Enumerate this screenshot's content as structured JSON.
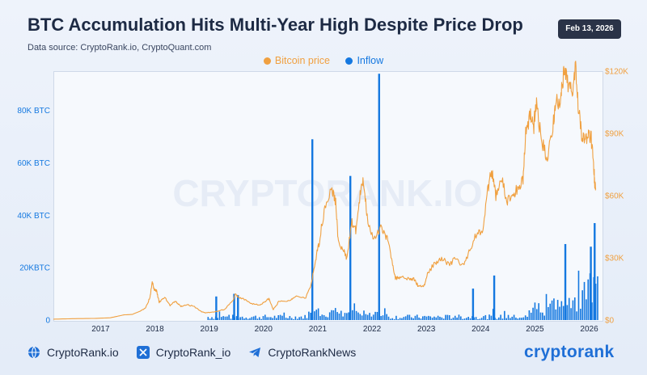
{
  "header": {
    "title": "BTC Accumulation Hits Multi-Year High Despite Price Drop",
    "subtitle": "Data source: CryptoRank.io, CryptoQuant.com",
    "date": "Feb 13, 2026"
  },
  "watermark": "CRYPTORANK.IO",
  "colors": {
    "price": "#f0a040",
    "inflow": "#1478e0",
    "left_axis_text": "#1478e0",
    "right_axis_text": "#f0a040"
  },
  "chart_data": {
    "type": "bar+line",
    "title": "BTC Accumulation Hits Multi-Year High Despite Price Drop",
    "legend": [
      "Bitcoin price",
      "Inflow"
    ],
    "legend_position": "top-center",
    "x_range": [
      2016.15,
      2026.25
    ],
    "x_ticks": [
      "2017",
      "2018",
      "2019",
      "2020",
      "2021",
      "2022",
      "2023",
      "2024",
      "2025",
      "2026"
    ],
    "left_axis": {
      "series": "Inflow",
      "unit": "BTC",
      "range": [
        0,
        95000
      ],
      "ticks": [
        {
          "value": 0,
          "label": "0"
        },
        {
          "value": 20000,
          "label": "20KBTC"
        },
        {
          "value": 40000,
          "label": "40K BTC"
        },
        {
          "value": 60000,
          "label": "60K BTC"
        },
        {
          "value": 80000,
          "label": "80K BTC"
        }
      ]
    },
    "right_axis": {
      "series": "Bitcoin price",
      "unit": "USD",
      "range": [
        0,
        120000
      ],
      "ticks": [
        {
          "value": 0,
          "label": "$0"
        },
        {
          "value": 30000,
          "label": "$30K"
        },
        {
          "value": 60000,
          "label": "$60K"
        },
        {
          "value": 90000,
          "label": "$90K"
        },
        {
          "value": 120000,
          "label": "$120K"
        }
      ]
    },
    "series": [
      {
        "name": "Bitcoin price",
        "axis": "right",
        "type": "line",
        "points": [
          [
            2016.15,
            420
          ],
          [
            2016.5,
            650
          ],
          [
            2016.9,
            780
          ],
          [
            2017.2,
            1100
          ],
          [
            2017.45,
            2500
          ],
          [
            2017.6,
            2700
          ],
          [
            2017.75,
            4300
          ],
          [
            2017.85,
            6000
          ],
          [
            2017.93,
            11000
          ],
          [
            2017.97,
            19000
          ],
          [
            2018.0,
            15000
          ],
          [
            2018.05,
            14000
          ],
          [
            2018.1,
            8500
          ],
          [
            2018.2,
            11000
          ],
          [
            2018.3,
            7000
          ],
          [
            2018.4,
            9000
          ],
          [
            2018.5,
            6500
          ],
          [
            2018.6,
            7500
          ],
          [
            2018.75,
            6400
          ],
          [
            2018.88,
            4000
          ],
          [
            2018.95,
            3500
          ],
          [
            2019.1,
            3800
          ],
          [
            2019.3,
            5200
          ],
          [
            2019.45,
            9000
          ],
          [
            2019.5,
            12500
          ],
          [
            2019.55,
            11000
          ],
          [
            2019.65,
            10000
          ],
          [
            2019.8,
            8000
          ],
          [
            2019.95,
            7200
          ],
          [
            2020.05,
            9000
          ],
          [
            2020.12,
            10300
          ],
          [
            2020.2,
            5000
          ],
          [
            2020.3,
            8800
          ],
          [
            2020.5,
            9300
          ],
          [
            2020.6,
            11500
          ],
          [
            2020.8,
            11000
          ],
          [
            2020.9,
            17000
          ],
          [
            2020.98,
            29000
          ],
          [
            2021.05,
            38000
          ],
          [
            2021.15,
            55000
          ],
          [
            2021.28,
            63000
          ],
          [
            2021.35,
            57000
          ],
          [
            2021.4,
            37000
          ],
          [
            2021.5,
            33000
          ],
          [
            2021.55,
            30000
          ],
          [
            2021.65,
            47000
          ],
          [
            2021.72,
            43000
          ],
          [
            2021.8,
            60000
          ],
          [
            2021.86,
            68000
          ],
          [
            2021.93,
            50000
          ],
          [
            2022.05,
            38000
          ],
          [
            2022.2,
            45000
          ],
          [
            2022.3,
            39000
          ],
          [
            2022.38,
            30000
          ],
          [
            2022.45,
            20000
          ],
          [
            2022.55,
            21000
          ],
          [
            2022.7,
            20000
          ],
          [
            2022.8,
            19500
          ],
          [
            2022.87,
            16500
          ],
          [
            2022.98,
            16600
          ],
          [
            2023.05,
            23000
          ],
          [
            2023.2,
            28000
          ],
          [
            2023.3,
            30000
          ],
          [
            2023.45,
            26500
          ],
          [
            2023.55,
            30000
          ],
          [
            2023.7,
            26000
          ],
          [
            2023.82,
            34000
          ],
          [
            2023.95,
            42000
          ],
          [
            2024.05,
            43000
          ],
          [
            2024.15,
            62000
          ],
          [
            2024.22,
            72000
          ],
          [
            2024.3,
            60000
          ],
          [
            2024.4,
            69000
          ],
          [
            2024.5,
            57000
          ],
          [
            2024.6,
            60000
          ],
          [
            2024.7,
            63000
          ],
          [
            2024.8,
            68000
          ],
          [
            2024.85,
            90000
          ],
          [
            2024.93,
            100000
          ],
          [
            2025.0,
            94000
          ],
          [
            2025.05,
            104000
          ],
          [
            2025.15,
            85000
          ],
          [
            2025.25,
            78000
          ],
          [
            2025.35,
            94000
          ],
          [
            2025.4,
            104000
          ],
          [
            2025.5,
            107000
          ],
          [
            2025.55,
            118000
          ],
          [
            2025.62,
            115000
          ],
          [
            2025.7,
            110000
          ],
          [
            2025.77,
            124000
          ],
          [
            2025.82,
            104000
          ],
          [
            2025.88,
            90000
          ],
          [
            2025.93,
            87000
          ],
          [
            2026.0,
            88000
          ],
          [
            2026.05,
            90000
          ],
          [
            2026.1,
            76000
          ],
          [
            2026.12,
            66000
          ],
          [
            2026.14,
            63000
          ]
        ]
      },
      {
        "name": "Inflow",
        "axis": "left",
        "type": "bar",
        "notable_bars": [
          [
            2019.15,
            9000
          ],
          [
            2019.48,
            10000
          ],
          [
            2019.55,
            9500
          ],
          [
            2020.92,
            69000
          ],
          [
            2021.62,
            55000
          ],
          [
            2022.15,
            94000
          ],
          [
            2023.88,
            12000
          ],
          [
            2024.27,
            17000
          ],
          [
            2025.58,
            29000
          ],
          [
            2026.05,
            28000
          ],
          [
            2026.12,
            37000
          ]
        ],
        "baseline_pattern": "many small daily inflows, increasing from 2025 onward"
      }
    ]
  },
  "footer": {
    "links": [
      {
        "icon": "globe-icon",
        "label": "CryptoRank.io"
      },
      {
        "icon": "x-logo-icon",
        "label": "CryptoRank_io"
      },
      {
        "icon": "telegram-icon",
        "label": "CryptoRankNews"
      }
    ],
    "brand": "cryptorank"
  }
}
